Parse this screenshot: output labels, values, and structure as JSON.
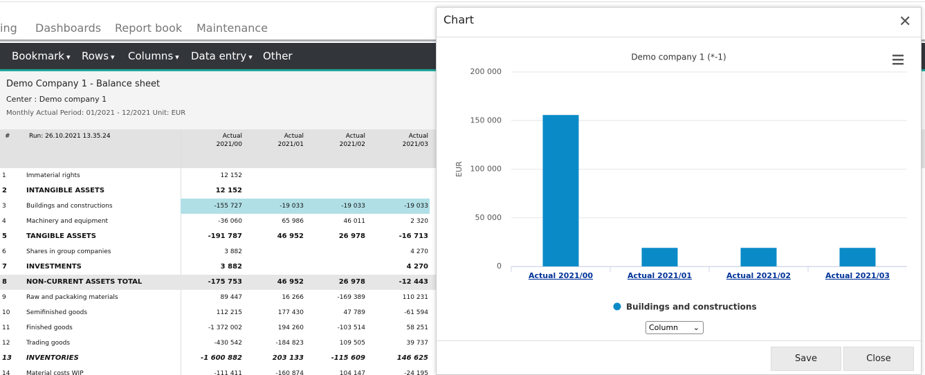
{
  "nav": {
    "tabs": [
      "ing",
      "Dashboards",
      "Report book",
      "Maintenance"
    ]
  },
  "toolbar": {
    "menus": [
      {
        "label": "Bookmark",
        "dropdown": true
      },
      {
        "label": "Rows",
        "dropdown": true
      },
      {
        "label": "Columns",
        "dropdown": true
      },
      {
        "label": "Data entry",
        "dropdown": true
      },
      {
        "label": "Other",
        "dropdown": false
      }
    ]
  },
  "report": {
    "title": "Demo Company 1 - Balance sheet",
    "center": "Center : Demo company 1",
    "period": "Monthly Actual Period: 01/2021 - 12/2021 Unit: EUR"
  },
  "table": {
    "header": {
      "number": "#",
      "run": "Run: 26.10.2021 13.35.24",
      "columns": [
        {
          "label": "Actual",
          "period": "2021/00"
        },
        {
          "label": "Actual",
          "period": "2021/01"
        },
        {
          "label": "Actual",
          "period": "2021/02"
        },
        {
          "label": "Actual",
          "period": "2021/03"
        }
      ]
    },
    "rows": [
      {
        "number": "1",
        "label": "Immaterial rights",
        "style": "normal",
        "values": [
          "12 152",
          null,
          null,
          null
        ]
      },
      {
        "number": "2",
        "label": "INTANGIBLE ASSETS",
        "style": "bold",
        "values": [
          "12 152",
          null,
          null,
          null
        ]
      },
      {
        "number": "3",
        "label": "Buildings and constructions",
        "style": "selected",
        "values": [
          "-155 727",
          "-19 033",
          "-19 033",
          "-19 033"
        ]
      },
      {
        "number": "4",
        "label": "Machinery and equipment",
        "style": "normal",
        "values": [
          "-36 060",
          "65 986",
          "46 011",
          "2 320"
        ]
      },
      {
        "number": "5",
        "label": "TANGIBLE ASSETS",
        "style": "bold",
        "values": [
          "-191 787",
          "46 952",
          "26 978",
          "-16 713"
        ]
      },
      {
        "number": "6",
        "label": "Shares in group companies",
        "style": "normal",
        "values": [
          "3 882",
          null,
          null,
          "4 270"
        ]
      },
      {
        "number": "7",
        "label": "INVESTMENTS",
        "style": "bold",
        "values": [
          "3 882",
          null,
          null,
          "4 270"
        ]
      },
      {
        "number": "8",
        "label": "NON-CURRENT ASSETS TOTAL",
        "style": "total",
        "values": [
          "-175 753",
          "46 952",
          "26 978",
          "-12 443"
        ]
      },
      {
        "number": "9",
        "label": "Raw and packaking materials",
        "style": "normal",
        "values": [
          "89 447",
          "16 266",
          "-169 389",
          "110 231"
        ]
      },
      {
        "number": "10",
        "label": "Semifinished goods",
        "style": "normal",
        "values": [
          "112 215",
          "177 430",
          "47 789",
          "-61 594"
        ]
      },
      {
        "number": "11",
        "label": "Finished goods",
        "style": "normal",
        "values": [
          "-1 372 002",
          "194 260",
          "-103 514",
          "58 251"
        ]
      },
      {
        "number": "12",
        "label": "Trading goods",
        "style": "normal",
        "values": [
          "-430 542",
          "-184 823",
          "109 505",
          "39 737"
        ]
      },
      {
        "number": "13",
        "label": "INVENTORIES",
        "style": "bold-italic",
        "values": [
          "-1 600 882",
          "203 133",
          "-115 609",
          "146 625"
        ]
      },
      {
        "number": "14",
        "label": "Material costs WIP",
        "style": "normal",
        "values": [
          "-111 411",
          "-160 874",
          "104 147",
          "-24 195"
        ]
      }
    ]
  },
  "dialog": {
    "title": "Chart",
    "chart_type_select": "Column",
    "buttons": [
      "Save",
      "Close"
    ]
  },
  "chart_data": {
    "type": "bar",
    "title": "Demo company 1 (*-1)",
    "y_label": "EUR",
    "categories": [
      "Actual 2021/00",
      "Actual 2021/01",
      "Actual 2021/02",
      "Actual 2021/03"
    ],
    "series": [
      {
        "name": "Buildings and constructions",
        "color": "#0a8bc8",
        "values": [
          155727,
          19033,
          19033,
          19033
        ]
      }
    ],
    "ylim": [
      0,
      200000
    ],
    "yticks": [
      0,
      {
        "value": 50000,
        "label": "50 000"
      },
      {
        "value": 100000,
        "label": "100 000"
      },
      {
        "value": 150000,
        "label": "150 000"
      },
      {
        "value": 200000,
        "label": "200 000"
      }
    ],
    "grid": true
  }
}
